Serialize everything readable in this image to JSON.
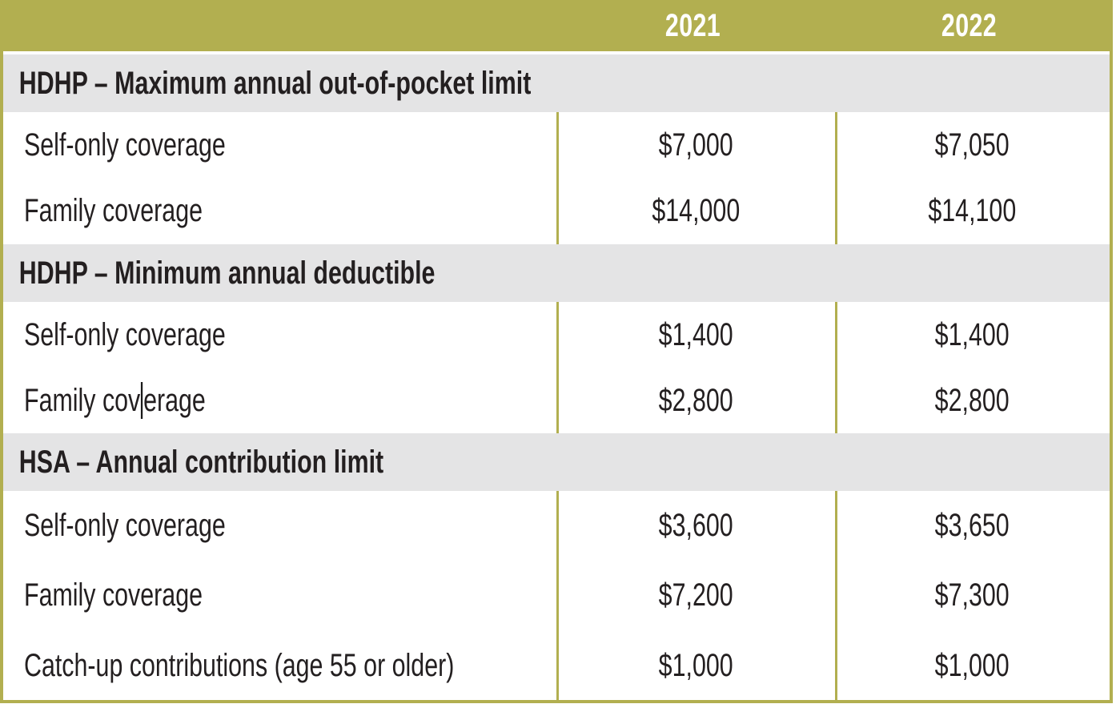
{
  "table": {
    "header": {
      "years": [
        "2021",
        "2022"
      ]
    },
    "sections": [
      {
        "title": "HDHP – Maximum annual out-of-pocket limit",
        "rows": [
          {
            "label": "Self-only coverage",
            "values": [
              "$7,000",
              "$7,050"
            ]
          },
          {
            "label": "Family coverage",
            "values": [
              "$14,000",
              "$14,100"
            ]
          }
        ]
      },
      {
        "title": "HDHP – Minimum annual deductible",
        "rows": [
          {
            "label": "Self-only coverage",
            "values": [
              "$1,400",
              "$1,400"
            ]
          },
          {
            "label_before_caret": "Family cov",
            "label_after_caret": "erage",
            "values": [
              "$2,800",
              "$2,800"
            ]
          }
        ]
      },
      {
        "title": "HSA – Annual contribution limit",
        "rows": [
          {
            "label": "Self-only coverage",
            "values": [
              "$3,600",
              "$3,650"
            ]
          },
          {
            "label": "Family coverage",
            "values": [
              "$7,200",
              "$7,300"
            ]
          },
          {
            "label": "Catch-up contributions (age 55 or older)",
            "values": [
              "$1,000",
              "$1,000"
            ]
          }
        ]
      }
    ],
    "colors": {
      "olive_accent": "#b2af50",
      "section_band_gray": "#e4e4e5",
      "text_dark": "#231f20",
      "header_text_white": "#ffffff"
    }
  }
}
